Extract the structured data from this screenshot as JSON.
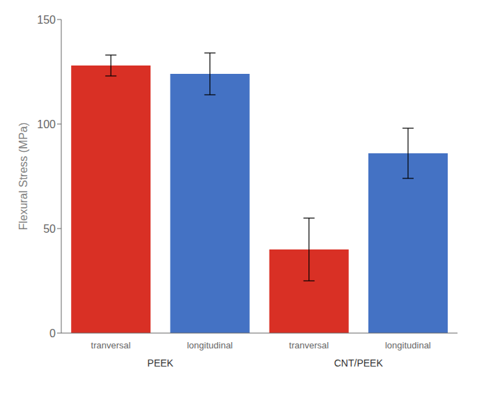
{
  "chart_data": {
    "type": "bar",
    "ylabel": "Flexural Stress (MPa)",
    "categories": [
      "tranversal",
      "longitudinal",
      "tranversal",
      "longitudinal"
    ],
    "category_groups": [
      "PEEK",
      "PEEK",
      "CNT/PEEK",
      "CNT/PEEK"
    ],
    "values": [
      128,
      124,
      40,
      86
    ],
    "errors": [
      5,
      10,
      15,
      12
    ],
    "colors": [
      "#d93025",
      "#4472c4",
      "#d93025",
      "#4472c4"
    ],
    "ylim": [
      0,
      150
    ],
    "yticks": [
      0,
      50,
      100,
      150
    ],
    "grid": false
  }
}
